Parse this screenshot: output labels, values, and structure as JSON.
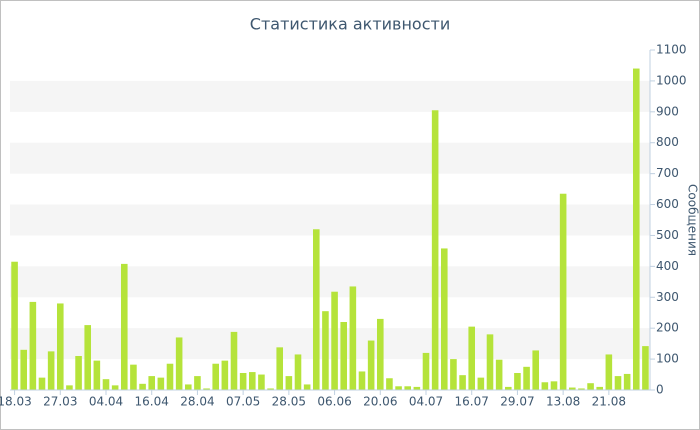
{
  "chart_data": {
    "type": "bar",
    "title": "Статистика активности",
    "y_label": "Сообщения",
    "categories": [
      "18.03",
      null,
      null,
      null,
      null,
      "27.03",
      null,
      null,
      null,
      null,
      "04.04",
      null,
      null,
      null,
      null,
      "16.04",
      null,
      null,
      null,
      null,
      "28.04",
      null,
      null,
      null,
      null,
      "07.05",
      null,
      null,
      null,
      null,
      "28.05",
      null,
      null,
      null,
      null,
      "06.06",
      null,
      null,
      null,
      null,
      "20.06",
      null,
      null,
      null,
      null,
      "04.07",
      null,
      null,
      null,
      null,
      "16.07",
      null,
      null,
      null,
      null,
      "29.07",
      null,
      null,
      null,
      null,
      "13.08",
      null,
      null,
      null,
      null,
      "21.08",
      null,
      null,
      null,
      null
    ],
    "values": [
      415,
      130,
      285,
      40,
      125,
      280,
      15,
      110,
      210,
      95,
      35,
      15,
      408,
      82,
      20,
      45,
      40,
      85,
      170,
      18,
      45,
      5,
      85,
      95,
      188,
      55,
      58,
      50,
      5,
      138,
      45,
      115,
      18,
      520,
      255,
      318,
      220,
      335,
      60,
      160,
      230,
      38,
      12,
      12,
      10,
      120,
      905,
      458,
      100,
      48,
      205,
      40,
      180,
      98,
      10,
      55,
      75,
      128,
      25,
      28,
      635,
      8,
      5,
      22,
      10,
      115,
      45,
      52,
      1040,
      142
    ],
    "color": "#b5e33a",
    "ylim": [
      0,
      1100
    ],
    "yticks": [
      0,
      100,
      200,
      300,
      400,
      500,
      600,
      700,
      800,
      900,
      1000,
      1100
    ],
    "grid": "bands",
    "y_axis_side": "right"
  }
}
